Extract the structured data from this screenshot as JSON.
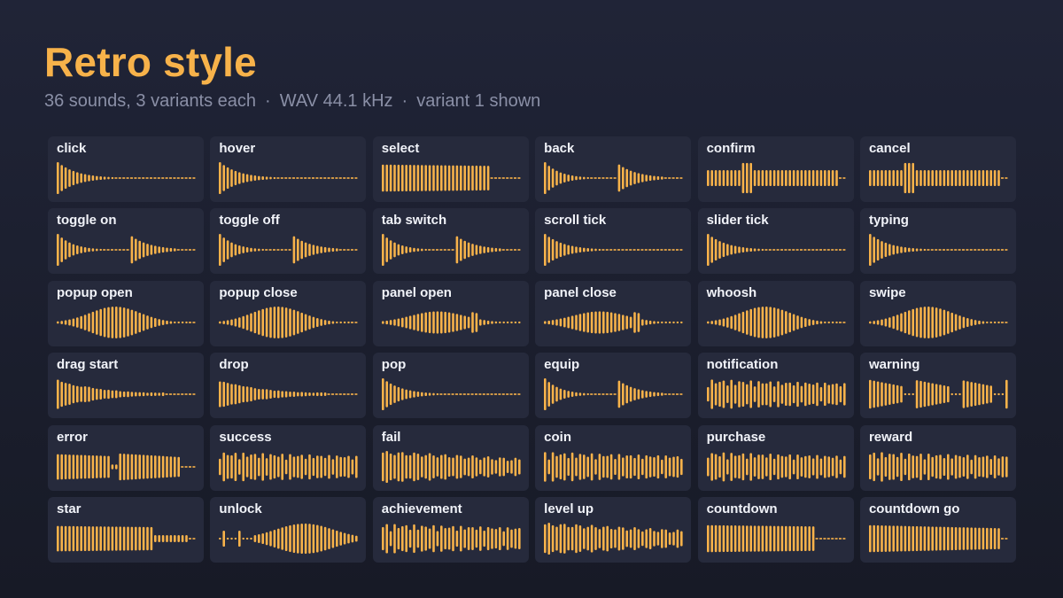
{
  "header": {
    "title": "Retro style",
    "subtitle_parts": [
      "36 sounds, 3 variants each",
      "WAV 44.1 kHz",
      "variant 1 shown"
    ],
    "separator": "·"
  },
  "colors": {
    "accent": "#f7b24a",
    "card_bg": "#262a3c",
    "page_bg": "#1b1e2c",
    "label": "#f1f3f9",
    "muted": "#8a8fa6"
  },
  "sounds": [
    {
      "label": "click",
      "wave": "decay"
    },
    {
      "label": "hover",
      "wave": "decay"
    },
    {
      "label": "select",
      "wave": "sustain-short"
    },
    {
      "label": "back",
      "wave": "double-decay"
    },
    {
      "label": "confirm",
      "wave": "bump-sustain"
    },
    {
      "label": "cancel",
      "wave": "bump-sustain"
    },
    {
      "label": "toggle on",
      "wave": "double-decay"
    },
    {
      "label": "toggle off",
      "wave": "double-decay"
    },
    {
      "label": "tab switch",
      "wave": "double-decay"
    },
    {
      "label": "scroll tick",
      "wave": "decay"
    },
    {
      "label": "slider tick",
      "wave": "decay"
    },
    {
      "label": "typing",
      "wave": "decay"
    },
    {
      "label": "popup open",
      "wave": "swell"
    },
    {
      "label": "popup close",
      "wave": "swell"
    },
    {
      "label": "panel open",
      "wave": "swell-peak"
    },
    {
      "label": "panel close",
      "wave": "swell-peak"
    },
    {
      "label": "whoosh",
      "wave": "swell"
    },
    {
      "label": "swipe",
      "wave": "swell"
    },
    {
      "label": "drag start",
      "wave": "decay-long"
    },
    {
      "label": "drop",
      "wave": "decay-long"
    },
    {
      "label": "pop",
      "wave": "decay"
    },
    {
      "label": "equip",
      "wave": "double-decay"
    },
    {
      "label": "notification",
      "wave": "chime"
    },
    {
      "label": "warning",
      "wave": "triple"
    },
    {
      "label": "error",
      "wave": "pair-block"
    },
    {
      "label": "success",
      "wave": "chime"
    },
    {
      "label": "fail",
      "wave": "sustain-fade"
    },
    {
      "label": "coin",
      "wave": "chime"
    },
    {
      "label": "purchase",
      "wave": "chime"
    },
    {
      "label": "reward",
      "wave": "chime"
    },
    {
      "label": "star",
      "wave": "sustain-tail"
    },
    {
      "label": "unlock",
      "wave": "late-swell"
    },
    {
      "label": "achievement",
      "wave": "chime"
    },
    {
      "label": "level up",
      "wave": "sustain-fade"
    },
    {
      "label": "countdown",
      "wave": "sustain-short"
    },
    {
      "label": "countdown go",
      "wave": "sustain-long"
    }
  ]
}
